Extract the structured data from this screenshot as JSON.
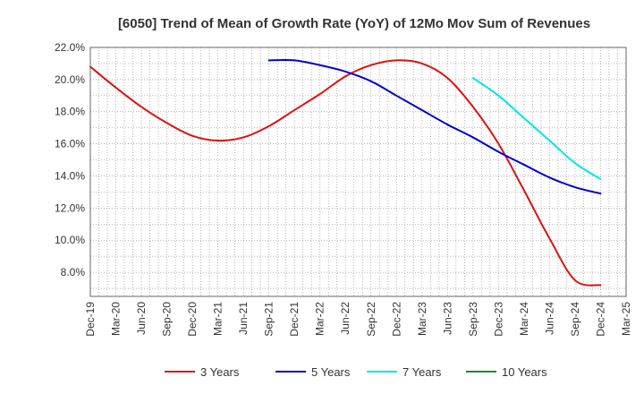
{
  "chart_data": {
    "type": "line",
    "title": "[6050]  Trend of Mean of Growth Rate (YoY) of 12Mo Mov Sum of Revenues",
    "xlabel": "",
    "ylabel": "",
    "ylim": [
      6.5,
      22.0
    ],
    "yticks": [
      8.0,
      10.0,
      12.0,
      14.0,
      16.0,
      18.0,
      20.0,
      22.0
    ],
    "ytick_labels": [
      "8.0%",
      "10.0%",
      "12.0%",
      "14.0%",
      "16.0%",
      "18.0%",
      "20.0%",
      "22.0%"
    ],
    "xlim_months": [
      0,
      63
    ],
    "xticks": [
      "Dec-19",
      "Mar-20",
      "Jun-20",
      "Sep-20",
      "Dec-20",
      "Mar-21",
      "Jun-21",
      "Sep-21",
      "Dec-21",
      "Mar-22",
      "Jun-22",
      "Sep-22",
      "Dec-22",
      "Mar-23",
      "Jun-23",
      "Sep-23",
      "Dec-23",
      "Mar-24",
      "Jun-24",
      "Sep-24",
      "Dec-24",
      "Mar-25"
    ],
    "grid": true,
    "legend_position": "bottom",
    "series": [
      {
        "name": "3 Years",
        "color": "#dd1111",
        "x": [
          0,
          3,
          6,
          9,
          12,
          15,
          18,
          21,
          24,
          27,
          30,
          33,
          36,
          39,
          42,
          45,
          48,
          51,
          54,
          57,
          60
        ],
        "y": [
          20.8,
          19.5,
          18.3,
          17.3,
          16.5,
          16.2,
          16.4,
          17.1,
          18.1,
          19.1,
          20.2,
          20.9,
          21.2,
          21.0,
          20.1,
          18.3,
          16.0,
          13.1,
          10.1,
          7.5,
          7.2
        ]
      },
      {
        "name": "5 Years",
        "color": "#0000cc",
        "x": [
          21,
          24,
          27,
          30,
          33,
          36,
          39,
          42,
          45,
          48,
          51,
          54,
          57,
          60
        ],
        "y": [
          21.2,
          21.2,
          20.9,
          20.5,
          19.9,
          19.0,
          18.1,
          17.2,
          16.4,
          15.5,
          14.7,
          13.9,
          13.3,
          12.9
        ]
      },
      {
        "name": "7 Years",
        "color": "#00e5e5",
        "x": [
          45,
          48,
          51,
          54,
          57,
          60
        ],
        "y": [
          20.1,
          19.0,
          17.6,
          16.2,
          14.8,
          13.8
        ]
      },
      {
        "name": "10 Years",
        "color": "#228822",
        "x": [],
        "y": []
      }
    ]
  }
}
